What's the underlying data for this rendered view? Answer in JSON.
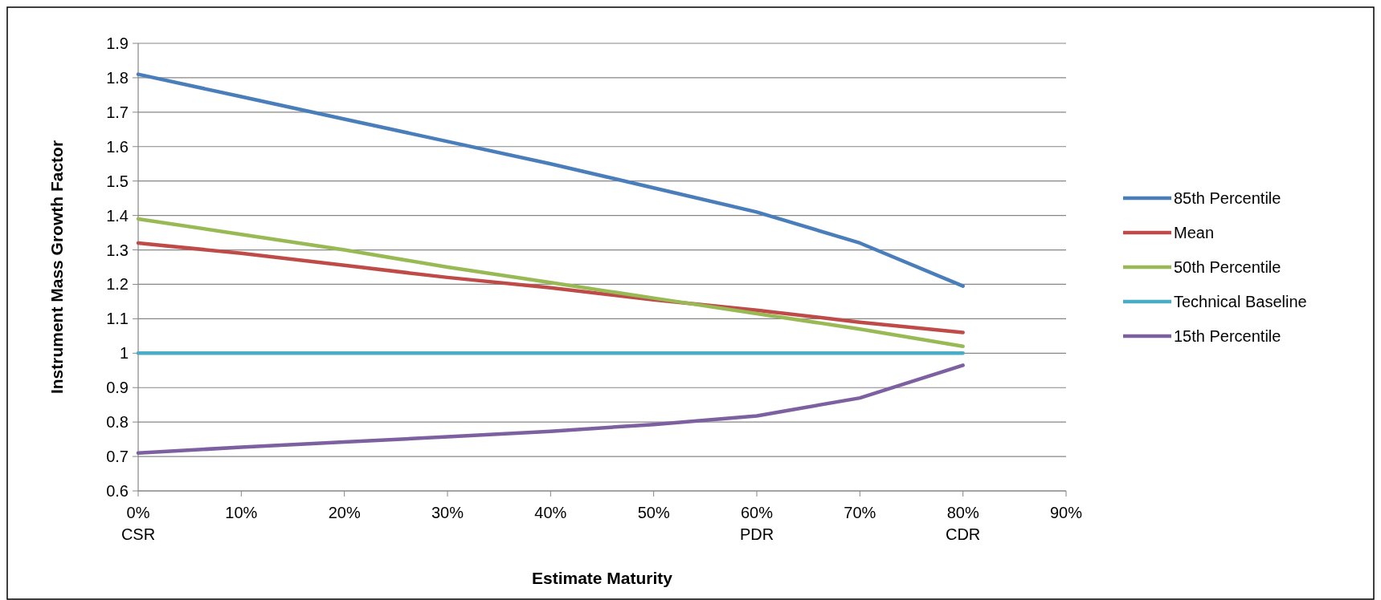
{
  "chart_data": {
    "type": "line",
    "xlabel": "Estimate Maturity",
    "ylabel": "Instrument Mass Growth Factor",
    "x": [
      0,
      0.1,
      0.2,
      0.3,
      0.4,
      0.5,
      0.6,
      0.7,
      0.8
    ],
    "series": [
      {
        "name": "85th Percentile",
        "color": "#4a7ebb",
        "values": [
          1.81,
          1.745,
          1.68,
          1.615,
          1.55,
          1.48,
          1.41,
          1.32,
          1.195
        ]
      },
      {
        "name": "Mean",
        "color": "#be4b48",
        "values": [
          1.32,
          1.29,
          1.255,
          1.22,
          1.19,
          1.155,
          1.125,
          1.09,
          1.06
        ]
      },
      {
        "name": "50th Percentile",
        "color": "#98b954",
        "values": [
          1.39,
          1.345,
          1.3,
          1.25,
          1.205,
          1.16,
          1.115,
          1.07,
          1.02
        ]
      },
      {
        "name": "Technical Baseline",
        "color": "#4bacc6",
        "values": [
          1,
          1,
          1,
          1,
          1,
          1,
          1,
          1,
          1
        ]
      },
      {
        "name": "15th Percentile",
        "color": "#7d60a0",
        "values": [
          0.71,
          0.727,
          0.742,
          0.757,
          0.773,
          0.793,
          0.818,
          0.87,
          0.965
        ]
      }
    ],
    "xlim": [
      0,
      0.9
    ],
    "xticks": [
      {
        "value": 0,
        "label": "0%\nCSR"
      },
      {
        "value": 0.1,
        "label": "10%"
      },
      {
        "value": 0.2,
        "label": "20%"
      },
      {
        "value": 0.3,
        "label": "30%"
      },
      {
        "value": 0.4,
        "label": "40%"
      },
      {
        "value": 0.5,
        "label": "50%"
      },
      {
        "value": 0.6,
        "label": "60%\nPDR"
      },
      {
        "value": 0.7,
        "label": "70%"
      },
      {
        "value": 0.8,
        "label": "80%\nCDR"
      },
      {
        "value": 0.9,
        "label": "90%"
      }
    ],
    "ylim": [
      0.6,
      1.9
    ],
    "yticks": [
      0.6,
      0.7,
      0.8,
      0.9,
      1,
      1.1,
      1.2,
      1.3,
      1.4,
      1.5,
      1.6,
      1.7,
      1.8,
      1.9
    ],
    "grid": "y",
    "legend": "right",
    "marker": "none",
    "line_style": "solid"
  }
}
